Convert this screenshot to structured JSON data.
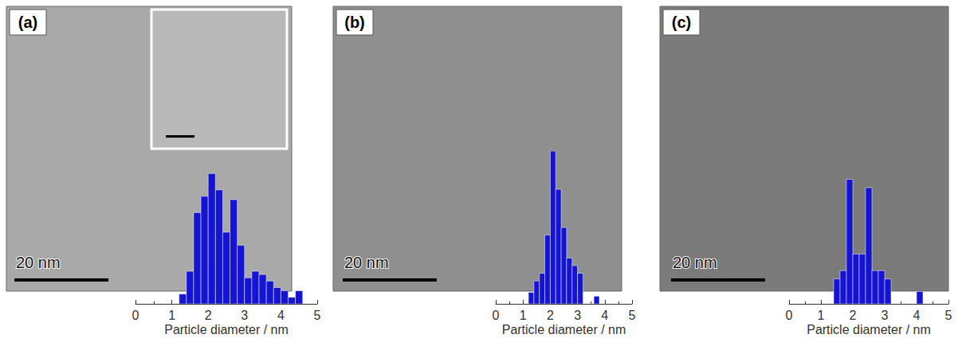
{
  "chart_data": [
    {
      "type": "histogram",
      "title": "(a)",
      "annotations": [
        "20 nm"
      ],
      "xlabel": "Particle diameter / nm",
      "bins": [
        1.2,
        1.4,
        1.6,
        1.8,
        2.0,
        2.2,
        2.4,
        2.6,
        2.8,
        3.0,
        3.2,
        3.4,
        3.6,
        3.8,
        4.0,
        4.2,
        4.4,
        4.6
      ],
      "values": [
        3,
        10,
        28,
        33,
        40,
        35,
        22,
        32,
        18,
        8,
        10,
        9,
        7,
        5,
        4,
        2,
        4
      ],
      "color": "#1414d2",
      "xlim": [
        0,
        5
      ],
      "xticks": [
        0,
        1,
        2,
        3,
        4,
        5
      ],
      "ylim": [
        0,
        42
      ],
      "tick_labels": "x"
    },
    {
      "type": "histogram",
      "title": "(b)",
      "annotations": [
        "20 nm"
      ],
      "xlabel": "Particle diameter / nm",
      "bins": [
        1.2,
        1.4,
        1.6,
        1.8,
        2.0,
        2.2,
        2.4,
        2.6,
        2.8,
        3.0,
        3.2,
        3.4,
        3.6,
        3.8
      ],
      "values": [
        3,
        6,
        8,
        18,
        40,
        30,
        20,
        12,
        10,
        8,
        0,
        0,
        2
      ],
      "color": "#1414d2",
      "xlim": [
        0,
        5
      ],
      "xticks": [
        0,
        1,
        2,
        3,
        4,
        5
      ],
      "ylim": [
        0,
        40
      ],
      "tick_labels": "x"
    },
    {
      "type": "histogram",
      "title": "(c)",
      "annotations": [
        "20 nm"
      ],
      "xlabel": "Particle diameter / nm",
      "bins": [
        1.4,
        1.6,
        1.8,
        2.0,
        2.2,
        2.4,
        2.6,
        2.8,
        3.0,
        3.2,
        3.4,
        3.6,
        3.8,
        4.0,
        4.2,
        4.4
      ],
      "values": [
        6,
        8,
        30,
        12,
        12,
        28,
        8,
        8,
        6,
        0,
        0,
        0,
        0,
        3,
        0
      ],
      "color": "#1414d2",
      "xlim": [
        0,
        5
      ],
      "xticks": [
        0,
        1,
        2,
        3,
        4,
        5
      ],
      "ylim": [
        0,
        32
      ],
      "tick_labels": "x"
    }
  ]
}
